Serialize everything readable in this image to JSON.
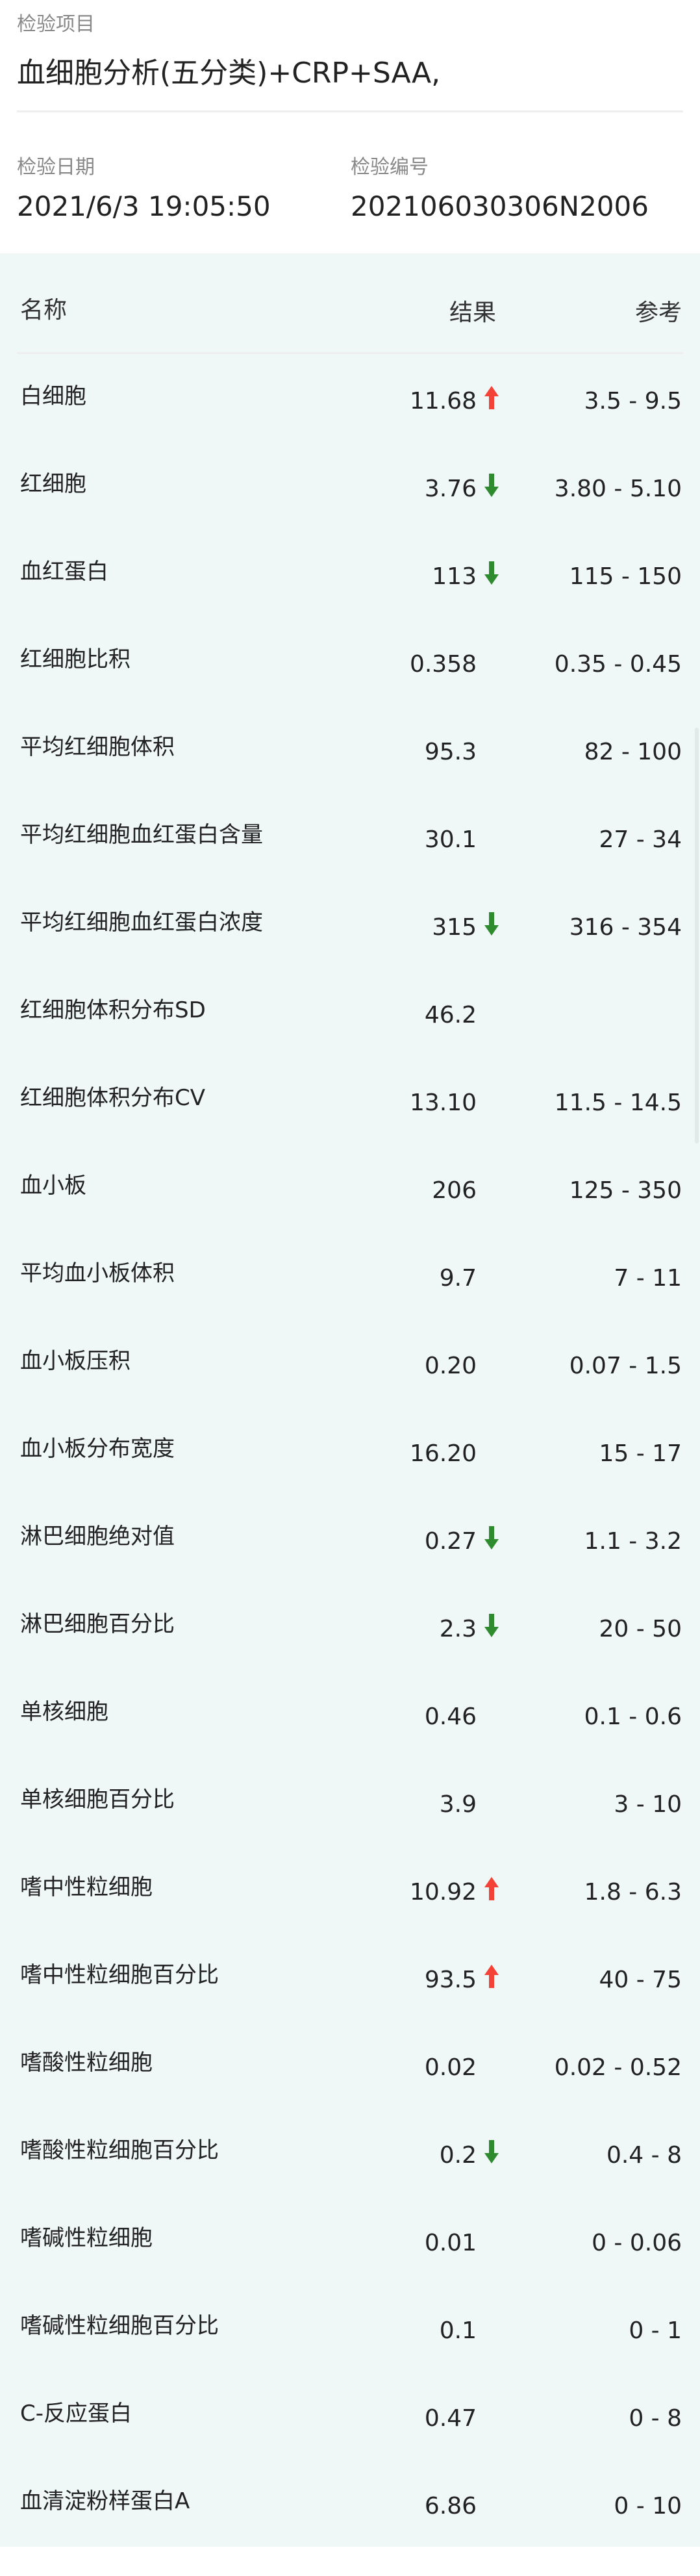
{
  "header": {
    "project_label": "检验项目",
    "project_value": "血细胞分析(五分类)+CRP+SAA,",
    "date_label": "检验日期",
    "date_value": "2021/6/3 19:05:50",
    "number_label": "检验编号",
    "number_value": "202106030306N2006"
  },
  "table": {
    "columns": [
      "名称",
      "结果",
      "参考"
    ],
    "colors": {
      "high": "#f44336",
      "low": "#2e8b2e"
    },
    "rows": [
      {
        "name": "白细胞",
        "value": "11.68",
        "flag": "high",
        "ref": "3.5 - 9.5"
      },
      {
        "name": "红细胞",
        "value": "3.76",
        "flag": "low",
        "ref": "3.80 - 5.10"
      },
      {
        "name": "血红蛋白",
        "value": "113",
        "flag": "low",
        "ref": "115 - 150"
      },
      {
        "name": "红细胞比积",
        "value": "0.358",
        "flag": "",
        "ref": "0.35 - 0.45"
      },
      {
        "name": "平均红细胞体积",
        "value": "95.3",
        "flag": "",
        "ref": "82 - 100"
      },
      {
        "name": "平均红细胞血红蛋白含量",
        "value": "30.1",
        "flag": "",
        "ref": "27 - 34"
      },
      {
        "name": "平均红细胞血红蛋白浓度",
        "value": "315",
        "flag": "low",
        "ref": "316 - 354"
      },
      {
        "name": "红细胞体积分布SD",
        "value": "46.2",
        "flag": "",
        "ref": ""
      },
      {
        "name": "红细胞体积分布CV",
        "value": "13.10",
        "flag": "",
        "ref": "11.5 - 14.5"
      },
      {
        "name": "血小板",
        "value": "206",
        "flag": "",
        "ref": "125 - 350"
      },
      {
        "name": "平均血小板体积",
        "value": "9.7",
        "flag": "",
        "ref": "7 - 11"
      },
      {
        "name": "血小板压积",
        "value": "0.20",
        "flag": "",
        "ref": "0.07 - 1.5"
      },
      {
        "name": "血小板分布宽度",
        "value": "16.20",
        "flag": "",
        "ref": "15 - 17"
      },
      {
        "name": "淋巴细胞绝对值",
        "value": "0.27",
        "flag": "low",
        "ref": "1.1 - 3.2"
      },
      {
        "name": "淋巴细胞百分比",
        "value": "2.3",
        "flag": "low",
        "ref": "20 - 50"
      },
      {
        "name": "单核细胞",
        "value": "0.46",
        "flag": "",
        "ref": "0.1 - 0.6"
      },
      {
        "name": "单核细胞百分比",
        "value": "3.9",
        "flag": "",
        "ref": "3 - 10"
      },
      {
        "name": "嗜中性粒细胞",
        "value": "10.92",
        "flag": "high",
        "ref": "1.8 - 6.3"
      },
      {
        "name": "嗜中性粒细胞百分比",
        "value": "93.5",
        "flag": "high",
        "ref": "40 - 75"
      },
      {
        "name": "嗜酸性粒细胞",
        "value": "0.02",
        "flag": "",
        "ref": "0.02 - 0.52"
      },
      {
        "name": "嗜酸性粒细胞百分比",
        "value": "0.2",
        "flag": "low",
        "ref": "0.4 - 8"
      },
      {
        "name": "嗜碱性粒细胞",
        "value": "0.01",
        "flag": "",
        "ref": "0 - 0.06"
      },
      {
        "name": "嗜碱性粒细胞百分比",
        "value": "0.1",
        "flag": "",
        "ref": "0 - 1"
      },
      {
        "name": "C-反应蛋白",
        "value": "0.47",
        "flag": "",
        "ref": "0 - 8"
      },
      {
        "name": "血清淀粉样蛋白A",
        "value": "6.86",
        "flag": "",
        "ref": "0 - 10"
      }
    ]
  }
}
